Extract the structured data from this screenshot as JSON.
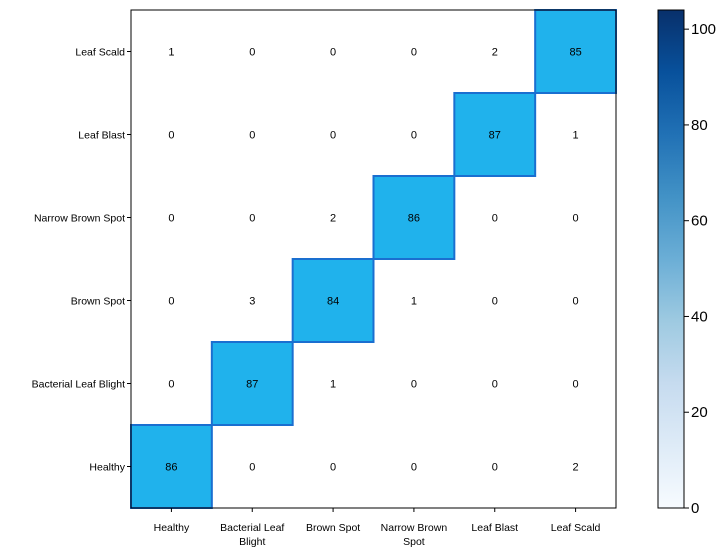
{
  "chart_data": {
    "type": "heatmap",
    "title": "",
    "xlabel": "",
    "ylabel": "",
    "x_categories": [
      "Healthy",
      "Bacterial Leaf Blight",
      "Brown Spot",
      "Narrow Brown Spot",
      "Leaf Blast",
      "Leaf Scald"
    ],
    "x_tick_lines": [
      [
        "Healthy"
      ],
      [
        "Bacterial Leaf",
        "Blight"
      ],
      [
        "Brown Spot"
      ],
      [
        "Narrow Brown",
        "Spot"
      ],
      [
        "Leaf Blast"
      ],
      [
        "Leaf Scald"
      ]
    ],
    "y_categories": [
      "Leaf Scald",
      "Leaf Blast",
      "Narrow Brown Spot",
      "Brown Spot",
      "Bacterial Leaf Blight",
      "Healthy"
    ],
    "matrix": [
      [
        1,
        0,
        0,
        0,
        2,
        85
      ],
      [
        0,
        0,
        0,
        0,
        87,
        1
      ],
      [
        0,
        0,
        2,
        86,
        0,
        0
      ],
      [
        0,
        3,
        84,
        1,
        0,
        0
      ],
      [
        0,
        87,
        1,
        0,
        0,
        0
      ],
      [
        86,
        0,
        0,
        0,
        0,
        2
      ]
    ],
    "colorbar": {
      "min": 0,
      "max": 104,
      "ticks": [
        0,
        20,
        40,
        60,
        80,
        100
      ],
      "tick_labels": [
        "0",
        "20",
        "40",
        "60",
        "80",
        "100"
      ],
      "colormap": "Blues"
    },
    "colors": {
      "highlight_fill": "#20b2ec",
      "highlight_border": "#1a6fd0",
      "low_fill": "#ffffff"
    },
    "grid": false,
    "legend": "colorbar-right"
  }
}
